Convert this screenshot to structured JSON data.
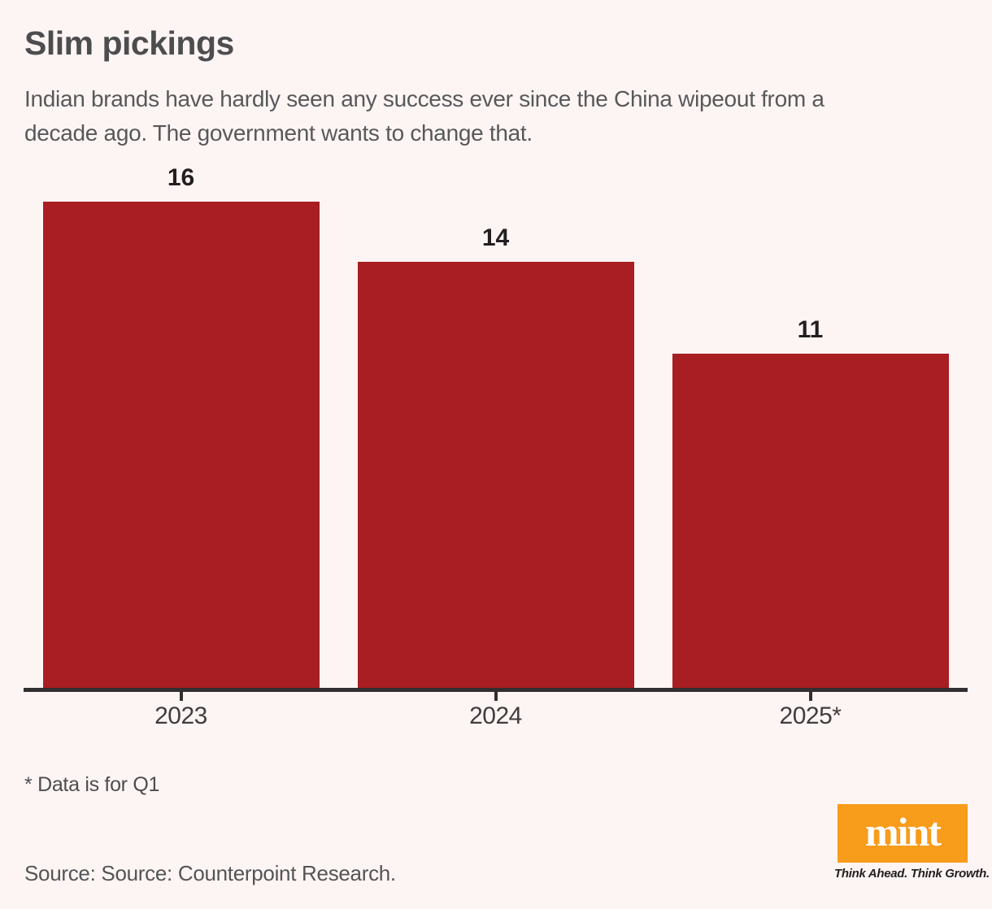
{
  "header": {
    "title": "Slim pickings",
    "subtitle": "Indian brands have hardly seen any success ever since the China wipeout from a\ndecade ago. The government wants to change that."
  },
  "footer": {
    "footnote": "* Data is for Q1",
    "source": "Source: Source: Counterpoint Research."
  },
  "logo": {
    "text": "mint",
    "tagline": "Think Ahead. Think Growth."
  },
  "colors": {
    "background": "#fdf5f4",
    "bar": "#a81e23",
    "axis": "#332e2f",
    "value_label": "#231f20",
    "logo_orange": "#f89c1c"
  },
  "chart_data": {
    "type": "bar",
    "categories": [
      "2023",
      "2024",
      "2025*"
    ],
    "values": [
      16,
      14,
      11
    ],
    "value_labels": [
      "16",
      "14",
      "11"
    ],
    "title": "Slim pickings",
    "xlabel": "",
    "ylabel": "",
    "ylim": [
      0,
      16
    ],
    "grid": false,
    "legend": false,
    "bar_color": "#a81e23",
    "value_labels_shown": true
  }
}
